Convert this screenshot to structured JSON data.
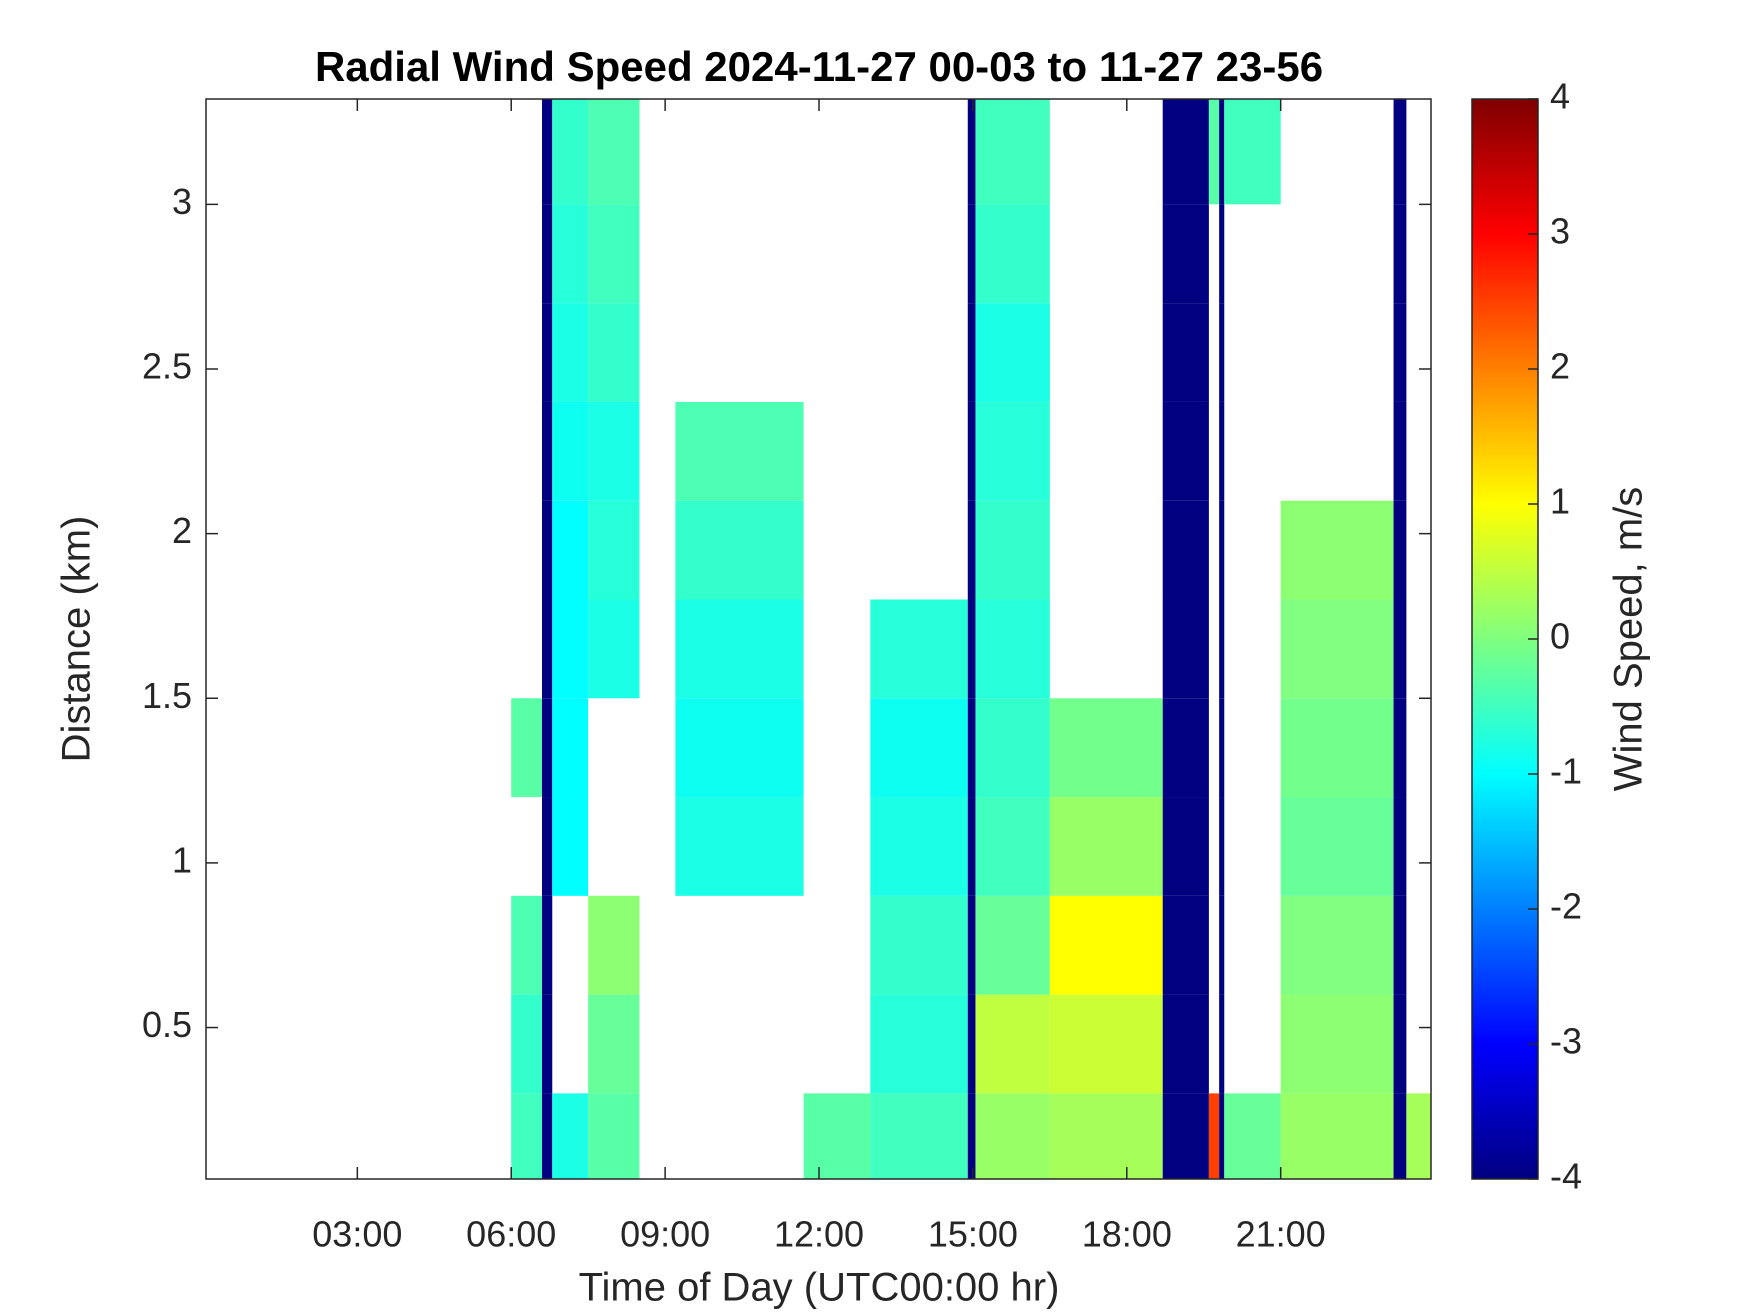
{
  "chart_data": {
    "type": "heatmap",
    "title": "Radial Wind Speed 2024-11-27 00-03 to 11-27 23-56",
    "x_label": "Time of Day (UTC00:00 hr)",
    "y_label": "Distance (km)",
    "colorbar_label": "Wind Speed, m/s",
    "colormap": "jet",
    "xlim": [
      0.05,
      23.93
    ],
    "ylim": [
      0.04,
      3.32
    ],
    "clim": [
      -4,
      4
    ],
    "xticks": [
      {
        "value": 3,
        "label": "03:00"
      },
      {
        "value": 6,
        "label": "06:00"
      },
      {
        "value": 9,
        "label": "09:00"
      },
      {
        "value": 12,
        "label": "12:00"
      },
      {
        "value": 15,
        "label": "15:00"
      },
      {
        "value": 18,
        "label": "18:00"
      },
      {
        "value": 21,
        "label": "21:00"
      }
    ],
    "yticks": [
      0.5,
      1,
      1.5,
      2,
      2.5,
      3
    ],
    "cticks": [
      -4,
      -3,
      -2,
      -1,
      0,
      1,
      2,
      3,
      4
    ],
    "xbins": [
      0.05,
      6.0,
      6.6,
      6.8,
      7.5,
      8.5,
      9.2,
      11.7,
      13.0,
      14.9,
      15.05,
      16.5,
      18.7,
      19.6,
      19.8,
      19.9,
      21.0,
      23.2,
      23.45,
      23.93
    ],
    "ybins": [
      0.04,
      0.3,
      0.6,
      0.9,
      1.2,
      1.5,
      1.8,
      2.1,
      2.4,
      2.7,
      3.0,
      3.32
    ],
    "values": [
      [
        null,
        -0.5,
        -4,
        -0.8,
        -0.3,
        null,
        null,
        -0.3,
        -0.5,
        -4,
        0.2,
        0.3,
        -4,
        2.5,
        -4,
        -0.2,
        0.2,
        -4,
        0.3
      ],
      [
        null,
        -0.6,
        -4,
        null,
        -0.2,
        null,
        null,
        null,
        -0.7,
        -4,
        0.5,
        0.6,
        -4,
        null,
        -4,
        null,
        0.1,
        -4,
        null
      ],
      [
        null,
        -0.4,
        -4,
        null,
        0.1,
        null,
        null,
        null,
        -0.6,
        -4,
        -0.2,
        1.0,
        -4,
        null,
        -4,
        null,
        0.0,
        -4,
        null
      ],
      [
        null,
        null,
        -4,
        -1,
        null,
        null,
        -0.8,
        null,
        -0.8,
        -4,
        -0.5,
        0.2,
        -4,
        null,
        -4,
        null,
        -0.2,
        -4,
        null
      ],
      [
        null,
        -0.3,
        -4,
        -1,
        null,
        null,
        -0.9,
        null,
        -0.9,
        -4,
        -0.6,
        -0.1,
        -4,
        null,
        -4,
        null,
        -0.1,
        -4,
        null
      ],
      [
        null,
        null,
        -4,
        -1,
        -0.8,
        null,
        -0.8,
        null,
        -0.7,
        -4,
        -0.7,
        null,
        -4,
        null,
        -4,
        null,
        0.0,
        -4,
        null
      ],
      [
        null,
        null,
        -4,
        -1,
        -0.7,
        null,
        -0.6,
        null,
        null,
        -4,
        -0.6,
        null,
        -4,
        null,
        -4,
        null,
        0.1,
        -4,
        null
      ],
      [
        null,
        null,
        -4,
        -0.9,
        -0.8,
        null,
        -0.4,
        null,
        null,
        -4,
        -0.7,
        null,
        -4,
        null,
        -4,
        null,
        null,
        -4,
        null
      ],
      [
        null,
        null,
        -4,
        -0.8,
        -0.6,
        null,
        null,
        null,
        null,
        -4,
        -0.8,
        null,
        -4,
        null,
        -4,
        null,
        null,
        -4,
        null
      ],
      [
        null,
        null,
        -4,
        -0.7,
        -0.5,
        null,
        null,
        null,
        null,
        -4,
        -0.6,
        null,
        -4,
        null,
        -4,
        null,
        null,
        -4,
        null
      ],
      [
        null,
        null,
        -4,
        -0.6,
        -0.4,
        null,
        null,
        null,
        null,
        -4,
        -0.5,
        null,
        -4,
        -0.3,
        -4,
        -0.5,
        null,
        -4,
        null
      ]
    ]
  }
}
